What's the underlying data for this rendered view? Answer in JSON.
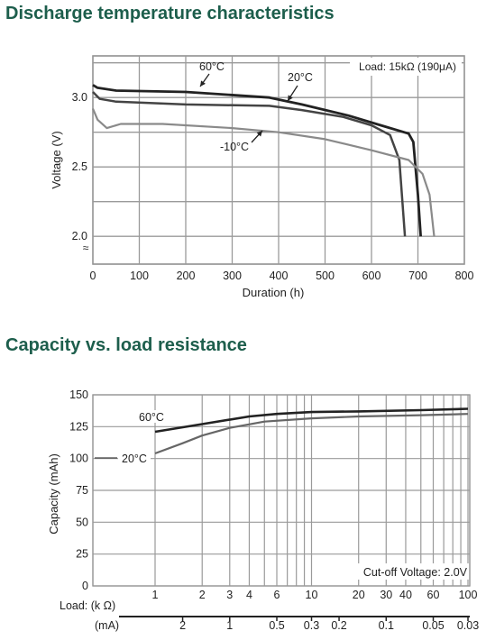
{
  "sections": {
    "discharge_title": "Discharge temperature characteristics",
    "capacity_title": "Capacity vs. load resistance"
  },
  "chart_data": [
    {
      "type": "line",
      "xlabel": "Duration (h)",
      "ylabel": "Voltage (V)",
      "xlim": [
        0,
        800
      ],
      "ylim": [
        1.8,
        3.3
      ],
      "x_ticks": [
        0,
        100,
        200,
        300,
        400,
        500,
        600,
        700,
        800
      ],
      "x_tick_labels": [
        "0",
        "100",
        "200",
        "300",
        "400",
        "500",
        "600",
        "700",
        "800"
      ],
      "y_ticks": [
        2.0,
        2.5,
        3.0
      ],
      "y_tick_labels": [
        "2.0",
        "2.5",
        "3.0"
      ],
      "axis_break_symbol": "≈",
      "grid": true,
      "annotation": "Load: 15kΩ (190μA)",
      "series": [
        {
          "name": "60°C",
          "color": "#222222",
          "points": [
            [
              0,
              3.09
            ],
            [
              10,
              3.07
            ],
            [
              50,
              3.05
            ],
            [
              200,
              3.04
            ],
            [
              380,
              3.0
            ],
            [
              450,
              2.95
            ],
            [
              550,
              2.87
            ],
            [
              620,
              2.8
            ],
            [
              680,
              2.74
            ],
            [
              690,
              2.68
            ],
            [
              700,
              2.3
            ],
            [
              706,
              2.0
            ]
          ]
        },
        {
          "name": "20°C",
          "color": "#444444",
          "points": [
            [
              0,
              3.04
            ],
            [
              15,
              2.99
            ],
            [
              50,
              2.97
            ],
            [
              200,
              2.95
            ],
            [
              380,
              2.94
            ],
            [
              450,
              2.91
            ],
            [
              540,
              2.86
            ],
            [
              600,
              2.8
            ],
            [
              640,
              2.73
            ],
            [
              660,
              2.55
            ],
            [
              672,
              2.0
            ]
          ]
        },
        {
          "name": "-10°C",
          "color": "#8a8a8a",
          "points": [
            [
              0,
              2.92
            ],
            [
              10,
              2.84
            ],
            [
              30,
              2.78
            ],
            [
              60,
              2.81
            ],
            [
              150,
              2.81
            ],
            [
              300,
              2.78
            ],
            [
              400,
              2.75
            ],
            [
              500,
              2.7
            ],
            [
              600,
              2.62
            ],
            [
              680,
              2.55
            ],
            [
              710,
              2.45
            ],
            [
              725,
              2.3
            ],
            [
              735,
              2.0
            ]
          ]
        }
      ],
      "series_labels": [
        "60°C",
        "20°C",
        "-10°C"
      ]
    },
    {
      "type": "line",
      "xlabel": "Load: (k Ω)",
      "x2label": "(mA)",
      "ylabel": "Capacity (mAh)",
      "x_scale": "log",
      "xlim": [
        1,
        100
      ],
      "ylim": [
        0,
        150
      ],
      "x_ticks": [
        1,
        2,
        3,
        4,
        6,
        10,
        20,
        30,
        40,
        60,
        100
      ],
      "x_tick_labels": [
        "1",
        "2",
        "3",
        "4",
        "6",
        "10",
        "20",
        "30",
        "40",
        "60",
        "100"
      ],
      "x_grid": [
        1,
        2,
        3,
        4,
        5,
        6,
        7,
        8,
        9,
        10,
        20,
        30,
        40,
        50,
        60,
        70,
        80,
        90,
        100
      ],
      "y_ticks": [
        0,
        25,
        50,
        75,
        100,
        125,
        150
      ],
      "y_tick_labels": [
        "0",
        "25",
        "50",
        "75",
        "100",
        "125",
        "150"
      ],
      "x2_ticks": [
        {
          "label": "2",
          "value": 1.5
        },
        {
          "label": "1",
          "value": 3
        },
        {
          "label": "0.5",
          "value": 6
        },
        {
          "label": "0.3",
          "value": 10
        },
        {
          "label": "0.2",
          "value": 15
        },
        {
          "label": "0.1",
          "value": 30
        },
        {
          "label": "0.05",
          "value": 60
        },
        {
          "label": "0.03",
          "value": 100
        }
      ],
      "grid": true,
      "annotation": "Cut-off Voltage: 2.0V",
      "series": [
        {
          "name": "60°C",
          "color": "#222222",
          "points": [
            [
              1,
              121
            ],
            [
              2,
              127
            ],
            [
              4,
              133
            ],
            [
              6,
              135
            ],
            [
              10,
              136.5
            ],
            [
              20,
              137
            ],
            [
              50,
              138
            ],
            [
              100,
              139
            ]
          ]
        },
        {
          "name": "20°C",
          "color": "#666666",
          "points": [
            [
              1,
              104
            ],
            [
              1.5,
              112
            ],
            [
              2,
              118
            ],
            [
              3,
              124
            ],
            [
              5,
              129
            ],
            [
              10,
              131.5
            ],
            [
              20,
              133
            ],
            [
              50,
              134
            ],
            [
              100,
              135
            ]
          ]
        }
      ],
      "series_labels": [
        "60°C",
        "20°C"
      ]
    }
  ]
}
